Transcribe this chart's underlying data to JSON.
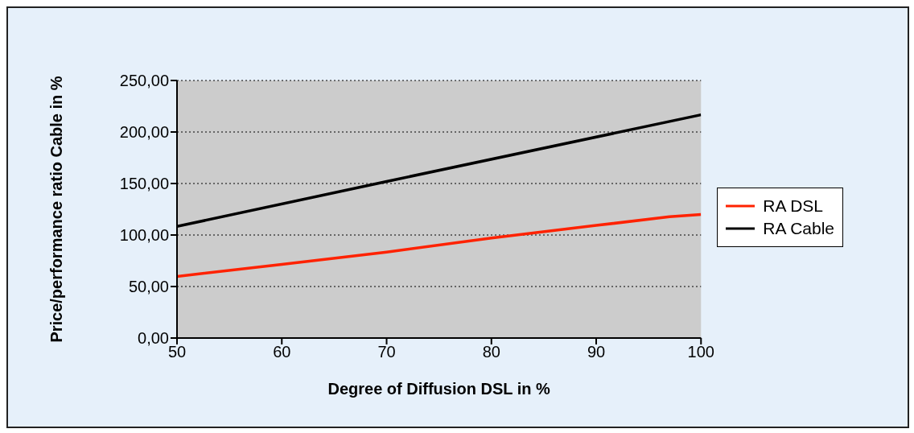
{
  "chart_data": {
    "type": "line",
    "xlabel": "Degree of Diffusion DSL in %",
    "ylabel": "Price/performance ratio Cable in %",
    "x": [
      50,
      60,
      70,
      80,
      90,
      97,
      100
    ],
    "series": [
      {
        "name": "RA DSL",
        "color": "#ff2200",
        "values": [
          59.8,
          71.5,
          83.4,
          97,
          109.3,
          117.7,
          120
        ]
      },
      {
        "name": "RA Cable",
        "color": "#000000",
        "x": [
          50,
          70,
          100
        ],
        "values": [
          108.3,
          152,
          216.7
        ]
      }
    ],
    "xlim": [
      50,
      100
    ],
    "xticks": [
      50,
      60,
      70,
      80,
      90,
      100
    ],
    "ylim": [
      0,
      250
    ],
    "yticks": [
      {
        "value": 0,
        "label": "0,00"
      },
      {
        "value": 50,
        "label": "50,00"
      },
      {
        "value": 100,
        "label": "100,00"
      },
      {
        "value": 150,
        "label": "150,00"
      },
      {
        "value": 200,
        "label": "200,00"
      },
      {
        "value": 250,
        "label": "250,00"
      }
    ],
    "grid": "y",
    "legend": "right",
    "marker": "none",
    "line_style": "solid"
  }
}
